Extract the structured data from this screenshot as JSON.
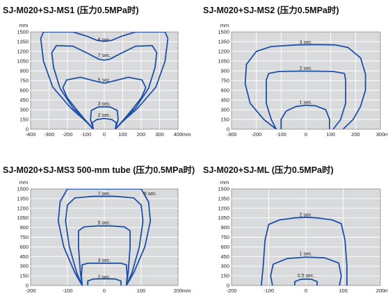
{
  "chart_data": [
    {
      "type": "line",
      "title": "SJ-M020+SJ-MS1 (压力0.5MPa时)",
      "ylabel": "mm",
      "xlabel": "mm",
      "xlim": [
        -400,
        400
      ],
      "ylim": [
        0,
        1500
      ],
      "x_ticks": [
        -400,
        -300,
        -200,
        -100,
        0,
        100,
        200,
        300,
        400
      ],
      "y_ticks": [
        0,
        150,
        300,
        450,
        600,
        750,
        900,
        1050,
        1200,
        1350,
        1500
      ],
      "grid": true,
      "series": [
        {
          "name": "8 sec.",
          "label_at": [
            0,
            1380
          ],
          "points": [
            [
              -60,
              0
            ],
            [
              -100,
              120
            ],
            [
              -180,
              320
            ],
            [
              -280,
              650
            ],
            [
              -330,
              1050
            ],
            [
              -345,
              1400
            ],
            [
              -330,
              1500
            ],
            [
              -170,
              1500
            ],
            [
              -100,
              1440
            ],
            [
              -40,
              1370
            ],
            [
              0,
              1355
            ],
            [
              40,
              1370
            ],
            [
              100,
              1440
            ],
            [
              170,
              1500
            ],
            [
              330,
              1500
            ],
            [
              345,
              1400
            ],
            [
              330,
              1050
            ],
            [
              280,
              650
            ],
            [
              180,
              320
            ],
            [
              100,
              120
            ],
            [
              60,
              0
            ]
          ]
        },
        {
          "name": "7 sec.",
          "label_at": [
            0,
            1140
          ],
          "points": [
            [
              -60,
              0
            ],
            [
              -100,
              130
            ],
            [
              -170,
              330
            ],
            [
              -240,
              630
            ],
            [
              -275,
              950
            ],
            [
              -285,
              1180
            ],
            [
              -260,
              1290
            ],
            [
              -170,
              1280
            ],
            [
              -90,
              1170
            ],
            [
              -30,
              1080
            ],
            [
              0,
              1065
            ],
            [
              30,
              1080
            ],
            [
              90,
              1170
            ],
            [
              170,
              1280
            ],
            [
              260,
              1290
            ],
            [
              285,
              1180
            ],
            [
              275,
              950
            ],
            [
              240,
              630
            ],
            [
              170,
              330
            ],
            [
              100,
              130
            ],
            [
              60,
              0
            ]
          ]
        },
        {
          "name": "5 sec.",
          "label_at": [
            0,
            760
          ],
          "points": [
            [
              -60,
              0
            ],
            [
              -100,
              130
            ],
            [
              -150,
              300
            ],
            [
              -200,
              480
            ],
            [
              -225,
              640
            ],
            [
              -205,
              760
            ],
            [
              -130,
              800
            ],
            [
              -60,
              750
            ],
            [
              0,
              710
            ],
            [
              60,
              750
            ],
            [
              130,
              800
            ],
            [
              205,
              760
            ],
            [
              225,
              640
            ],
            [
              200,
              480
            ],
            [
              150,
              300
            ],
            [
              100,
              130
            ],
            [
              60,
              0
            ]
          ]
        },
        {
          "name": "3 sec.",
          "label_at": [
            0,
            395
          ],
          "points": [
            [
              -60,
              0
            ],
            [
              -75,
              150
            ],
            [
              -70,
              290
            ],
            [
              -30,
              345
            ],
            [
              30,
              345
            ],
            [
              70,
              290
            ],
            [
              75,
              150
            ],
            [
              60,
              0
            ]
          ]
        },
        {
          "name": "2 sec.",
          "label_at": [
            0,
            220
          ],
          "points": [
            [
              -60,
              0
            ],
            [
              -65,
              100
            ],
            [
              -40,
              150
            ],
            [
              0,
              165
            ],
            [
              40,
              150
            ],
            [
              65,
              100
            ],
            [
              60,
              0
            ]
          ]
        }
      ]
    },
    {
      "type": "line",
      "title": "SJ-M020+SJ-MS2 (压力0.5MPa时)",
      "ylabel": "mm",
      "xlabel": "mm",
      "xlim": [
        -300,
        300
      ],
      "ylim": [
        0,
        1500
      ],
      "x_ticks": [
        -300,
        -200,
        -100,
        0,
        100,
        200,
        300
      ],
      "y_ticks": [
        0,
        150,
        300,
        450,
        600,
        750,
        900,
        1050,
        1200,
        1350,
        1500
      ],
      "grid": true,
      "series": [
        {
          "name": "3 sec.",
          "label_at": [
            0,
            1345
          ],
          "points": [
            [
              -120,
              0
            ],
            [
              -170,
              150
            ],
            [
              -225,
              400
            ],
            [
              -245,
              700
            ],
            [
              -240,
              1000
            ],
            [
              -200,
              1200
            ],
            [
              -140,
              1275
            ],
            [
              -40,
              1300
            ],
            [
              40,
              1305
            ],
            [
              120,
              1300
            ],
            [
              170,
              1260
            ],
            [
              220,
              1100
            ],
            [
              240,
              850
            ],
            [
              240,
              600
            ],
            [
              220,
              350
            ],
            [
              190,
              150
            ],
            [
              150,
              0
            ]
          ]
        },
        {
          "name": "2 sec.",
          "label_at": [
            0,
            945
          ],
          "points": [
            [
              -120,
              0
            ],
            [
              -140,
              150
            ],
            [
              -160,
              400
            ],
            [
              -160,
              760
            ],
            [
              -150,
              860
            ],
            [
              -110,
              890
            ],
            [
              -40,
              895
            ],
            [
              40,
              895
            ],
            [
              110,
              890
            ],
            [
              155,
              860
            ],
            [
              160,
              760
            ],
            [
              160,
              400
            ],
            [
              140,
              150
            ],
            [
              110,
              0
            ]
          ]
        },
        {
          "name": "1 sec.",
          "label_at": [
            0,
            420
          ],
          "points": [
            [
              -100,
              0
            ],
            [
              -100,
              150
            ],
            [
              -80,
              280
            ],
            [
              -40,
              350
            ],
            [
              0,
              370
            ],
            [
              40,
              360
            ],
            [
              80,
              300
            ],
            [
              95,
              150
            ],
            [
              95,
              0
            ]
          ]
        }
      ]
    },
    {
      "type": "line",
      "title": "SJ-M020+SJ-MS3 500-mm tube (压力0.5MPa时)",
      "ylabel": "mm",
      "xlabel": "mm",
      "xlim": [
        -200,
        200
      ],
      "ylim": [
        0,
        1500
      ],
      "x_ticks": [
        -200,
        -100,
        0,
        100,
        200
      ],
      "y_ticks": [
        0,
        150,
        300,
        450,
        600,
        750,
        900,
        1050,
        1200,
        1350,
        1500
      ],
      "grid": true,
      "series": [
        {
          "name": "8 sec.",
          "label_at": [
            125,
            1430
          ],
          "points": [
            [
              -60,
              0
            ],
            [
              -80,
              200
            ],
            [
              -110,
              600
            ],
            [
              -125,
              1000
            ],
            [
              -120,
              1300
            ],
            [
              -100,
              1500
            ],
            [
              100,
              1500
            ],
            [
              120,
              1300
            ],
            [
              125,
              1000
            ],
            [
              110,
              600
            ],
            [
              80,
              200
            ],
            [
              60,
              0
            ]
          ]
        },
        {
          "name": "7 sec.",
          "label_at": [
            0,
            1430
          ],
          "points": [
            [
              -60,
              0
            ],
            [
              -75,
              200
            ],
            [
              -95,
              600
            ],
            [
              -105,
              1000
            ],
            [
              -100,
              1250
            ],
            [
              -80,
              1360
            ],
            [
              -30,
              1385
            ],
            [
              30,
              1385
            ],
            [
              80,
              1360
            ],
            [
              100,
              1250
            ],
            [
              105,
              1000
            ],
            [
              95,
              600
            ],
            [
              75,
              200
            ],
            [
              60,
              0
            ]
          ]
        },
        {
          "name": "5 sec.",
          "label_at": [
            0,
            975
          ],
          "points": [
            [
              -60,
              0
            ],
            [
              -65,
              200
            ],
            [
              -70,
              600
            ],
            [
              -70,
              850
            ],
            [
              -55,
              910
            ],
            [
              -20,
              925
            ],
            [
              20,
              925
            ],
            [
              55,
              910
            ],
            [
              70,
              850
            ],
            [
              70,
              600
            ],
            [
              65,
              200
            ],
            [
              60,
              0
            ]
          ]
        },
        {
          "name": "3 sec.",
          "label_at": [
            0,
            395
          ],
          "points": [
            [
              -60,
              0
            ],
            [
              -62,
              150
            ],
            [
              -60,
              320
            ],
            [
              -45,
              345
            ],
            [
              45,
              345
            ],
            [
              60,
              320
            ],
            [
              62,
              150
            ],
            [
              60,
              0
            ]
          ]
        },
        {
          "name": "2 sec.",
          "label_at": [
            0,
            135
          ],
          "points": [
            [
              -45,
              0
            ],
            [
              -45,
              70
            ],
            [
              -30,
              100
            ],
            [
              0,
              105
            ],
            [
              30,
              100
            ],
            [
              45,
              70
            ],
            [
              45,
              0
            ]
          ]
        }
      ]
    },
    {
      "type": "line",
      "title": "SJ-M020+SJ-ML (压力0.5MPa时)",
      "ylabel": "mm",
      "xlabel": "mm",
      "xlim": [
        -200,
        200
      ],
      "ylim": [
        0,
        1500
      ],
      "x_ticks": [
        -200,
        -100,
        0,
        100,
        200
      ],
      "y_ticks": [
        0,
        150,
        300,
        450,
        600,
        750,
        900,
        1050,
        1200,
        1350,
        1500
      ],
      "grid": true,
      "series": [
        {
          "name": "2 sec.",
          "label_at": [
            0,
            1100
          ],
          "points": [
            [
              -120,
              0
            ],
            [
              -115,
              300
            ],
            [
              -110,
              700
            ],
            [
              -100,
              950
            ],
            [
              -70,
              1020
            ],
            [
              -30,
              1050
            ],
            [
              0,
              1060
            ],
            [
              30,
              1050
            ],
            [
              70,
              1020
            ],
            [
              95,
              960
            ],
            [
              105,
              700
            ],
            [
              110,
              300
            ],
            [
              110,
              0
            ]
          ]
        },
        {
          "name": "1 sec.",
          "label_at": [
            0,
            495
          ],
          "points": [
            [
              -90,
              0
            ],
            [
              -95,
              150
            ],
            [
              -88,
              330
            ],
            [
              -50,
              420
            ],
            [
              0,
              440
            ],
            [
              50,
              430
            ],
            [
              88,
              350
            ],
            [
              95,
              150
            ],
            [
              90,
              0
            ]
          ]
        },
        {
          "name": "0.5 sec.",
          "label_at": [
            0,
            155
          ],
          "points": [
            [
              -30,
              0
            ],
            [
              -30,
              60
            ],
            [
              -15,
              95
            ],
            [
              0,
              100
            ],
            [
              15,
              95
            ],
            [
              30,
              60
            ],
            [
              30,
              0
            ]
          ]
        }
      ]
    }
  ]
}
